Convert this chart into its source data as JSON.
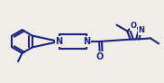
{
  "bg_color": "#f0ede8",
  "line_color": "#1a237e",
  "lw": 1.5,
  "xlim": [
    0,
    1
  ],
  "ylim": [
    0,
    1
  ],
  "figsize": [
    1.82,
    0.92
  ],
  "dpi": 100
}
